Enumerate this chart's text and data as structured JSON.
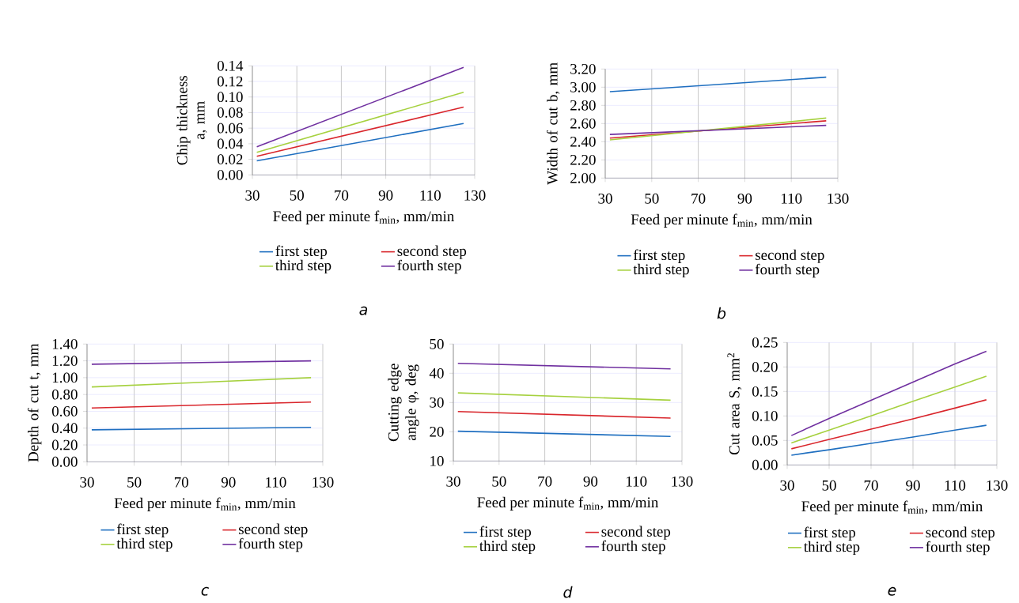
{
  "chart_data": [
    {
      "type": "line",
      "ylabel": "Chip thickness a, mm",
      "xlabel": "Feed per minute f$_{min}$, mm/min",
      "annotations": [
        "a"
      ],
      "grid": true,
      "legend": "bottom",
      "xlim": [
        30,
        130
      ],
      "xticks": [
        30,
        50,
        70,
        90,
        110,
        130
      ],
      "ylim": [
        0,
        0.14
      ],
      "yticks": [
        {
          "value": 0,
          "label": "0.00"
        },
        {
          "value": 0.02,
          "label": "0.02"
        },
        {
          "value": 0.04,
          "label": "0.04"
        },
        {
          "value": 0.06,
          "label": "0.06"
        },
        {
          "value": 0.08,
          "label": "0.08"
        },
        {
          "value": 0.1,
          "label": "0.10"
        },
        {
          "value": 0.12,
          "label": "0.12"
        },
        {
          "value": 0.14,
          "label": "0.14"
        }
      ],
      "x": [
        32,
        125
      ],
      "series": [
        {
          "name": "first step",
          "color": "#1f6fc0",
          "values": [
            0.018,
            0.066
          ]
        },
        {
          "name": "second step",
          "color": "#d9262c",
          "values": [
            0.024,
            0.087
          ]
        },
        {
          "name": "third step",
          "color": "#a6d13f",
          "values": [
            0.029,
            0.106
          ]
        },
        {
          "name": "fourth step",
          "color": "#7030a0",
          "values": [
            0.036,
            0.138
          ]
        }
      ]
    },
    {
      "type": "line",
      "ylabel": "Width of cut b, mm",
      "xlabel": "Feed per minute f$_{min}$, mm/min",
      "annotations": [
        "b"
      ],
      "grid": true,
      "legend": "bottom",
      "xlim": [
        30,
        130
      ],
      "xticks": [
        30,
        50,
        70,
        90,
        110,
        130
      ],
      "ylim": [
        2.0,
        3.2
      ],
      "yticks": [
        {
          "value": 2.0,
          "label": "2.00"
        },
        {
          "value": 2.2,
          "label": "2.20"
        },
        {
          "value": 2.4,
          "label": "2.40"
        },
        {
          "value": 2.6,
          "label": "2.60"
        },
        {
          "value": 2.8,
          "label": "2.80"
        },
        {
          "value": 3.0,
          "label": "3.00"
        },
        {
          "value": 3.2,
          "label": "3.20"
        }
      ],
      "x": [
        32,
        125
      ],
      "series": [
        {
          "name": "first step",
          "color": "#1f6fc0",
          "values": [
            2.95,
            3.11
          ]
        },
        {
          "name": "second step",
          "color": "#d9262c",
          "values": [
            2.44,
            2.63
          ]
        },
        {
          "name": "third step",
          "color": "#a6d13f",
          "values": [
            2.42,
            2.66
          ]
        },
        {
          "name": "fourth step",
          "color": "#7030a0",
          "values": [
            2.48,
            2.58
          ]
        }
      ]
    },
    {
      "type": "line",
      "ylabel": "Depth of cut  t, mm",
      "xlabel": "Feed per minute f$_{min}$, mm/min",
      "annotations": [
        "c"
      ],
      "grid": true,
      "legend": "bottom",
      "xlim": [
        30,
        130
      ],
      "xticks": [
        30,
        50,
        70,
        90,
        110,
        130
      ],
      "ylim": [
        0,
        1.4
      ],
      "yticks": [
        {
          "value": 0,
          "label": "0.00"
        },
        {
          "value": 0.2,
          "label": "0.20"
        },
        {
          "value": 0.4,
          "label": "0.40"
        },
        {
          "value": 0.6,
          "label": "0.60"
        },
        {
          "value": 0.8,
          "label": "0.80"
        },
        {
          "value": 1.0,
          "label": "1.00"
        },
        {
          "value": 1.2,
          "label": "1.20"
        },
        {
          "value": 1.4,
          "label": "1.40"
        }
      ],
      "x": [
        32,
        125
      ],
      "series": [
        {
          "name": "first step",
          "color": "#1f6fc0",
          "values": [
            0.38,
            0.41
          ]
        },
        {
          "name": "second step",
          "color": "#d9262c",
          "values": [
            0.64,
            0.71
          ]
        },
        {
          "name": "third step",
          "color": "#a6d13f",
          "values": [
            0.89,
            1.0
          ]
        },
        {
          "name": "fourth step",
          "color": "#7030a0",
          "values": [
            1.16,
            1.2
          ]
        }
      ]
    },
    {
      "type": "line",
      "ylabel": "Cutting edge angle φ, deg",
      "xlabel": "Feed per minute f$_{min}$, mm/min",
      "annotations": [
        "d"
      ],
      "grid": true,
      "legend": "bottom",
      "xlim": [
        30,
        130
      ],
      "xticks": [
        30,
        50,
        70,
        90,
        110,
        130
      ],
      "ylim": [
        10,
        50
      ],
      "yticks": [
        10,
        20,
        30,
        40,
        50
      ],
      "x": [
        32,
        125
      ],
      "series": [
        {
          "name": "first step",
          "color": "#1f6fc0",
          "values": [
            20.2,
            18.4
          ]
        },
        {
          "name": "second step",
          "color": "#d9262c",
          "values": [
            26.9,
            24.7
          ]
        },
        {
          "name": "third step",
          "color": "#a6d13f",
          "values": [
            33.3,
            30.8
          ]
        },
        {
          "name": "fourth step",
          "color": "#7030a0",
          "values": [
            43.4,
            41.5
          ]
        }
      ]
    },
    {
      "type": "line",
      "ylabel": "Cut area  S, mm$^{2}$",
      "xlabel": "Feed per minute f$_{min}$, mm/min",
      "annotations": [
        "e"
      ],
      "grid": true,
      "legend": "bottom",
      "xlim": [
        30,
        130
      ],
      "xticks": [
        30,
        50,
        70,
        90,
        110,
        130
      ],
      "ylim": [
        0,
        0.25
      ],
      "yticks": [
        {
          "value": 0,
          "label": "0.00"
        },
        {
          "value": 0.05,
          "label": "0.05"
        },
        {
          "value": 0.1,
          "label": "0.10"
        },
        {
          "value": 0.15,
          "label": "0.15"
        },
        {
          "value": 0.2,
          "label": "0.20"
        },
        {
          "value": 0.25,
          "label": "0.25"
        }
      ],
      "x": [
        32,
        50,
        70,
        90,
        110,
        125
      ],
      "series": [
        {
          "name": "first step",
          "color": "#1f6fc0",
          "values": [
            0.02,
            0.031,
            0.044,
            0.057,
            0.071,
            0.081
          ]
        },
        {
          "name": "second step",
          "color": "#d9262c",
          "values": [
            0.033,
            0.052,
            0.073,
            0.094,
            0.116,
            0.133
          ]
        },
        {
          "name": "third step",
          "color": "#a6d13f",
          "values": [
            0.045,
            0.071,
            0.1,
            0.13,
            0.159,
            0.181
          ]
        },
        {
          "name": "fourth step",
          "color": "#7030a0",
          "values": [
            0.06,
            0.095,
            0.132,
            0.169,
            0.206,
            0.232
          ]
        }
      ]
    }
  ]
}
